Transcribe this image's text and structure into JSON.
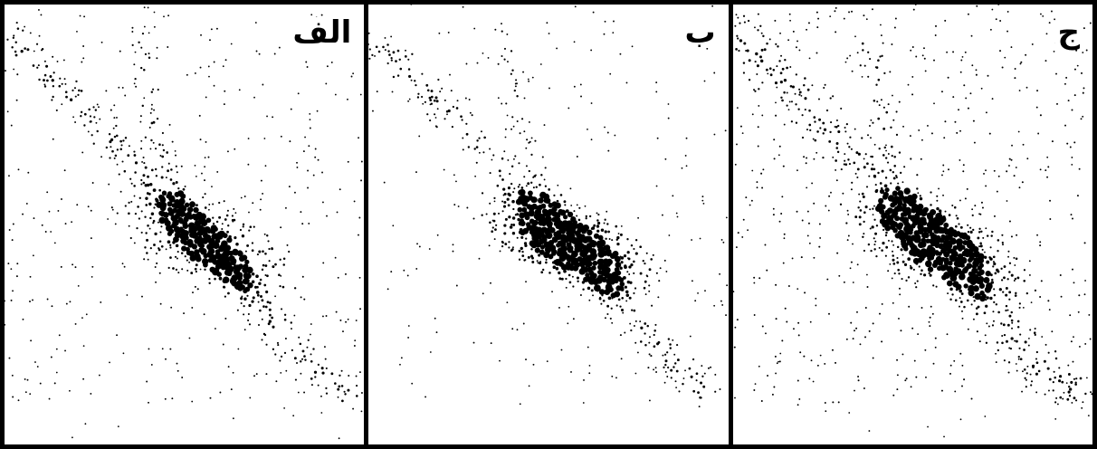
{
  "panels": [
    {
      "id": "a",
      "label": "الف",
      "ink": "#000000"
    },
    {
      "id": "b",
      "label": "ب",
      "ink": "#000000"
    },
    {
      "id": "c",
      "label": "ج",
      "ink": "#000000"
    }
  ]
}
